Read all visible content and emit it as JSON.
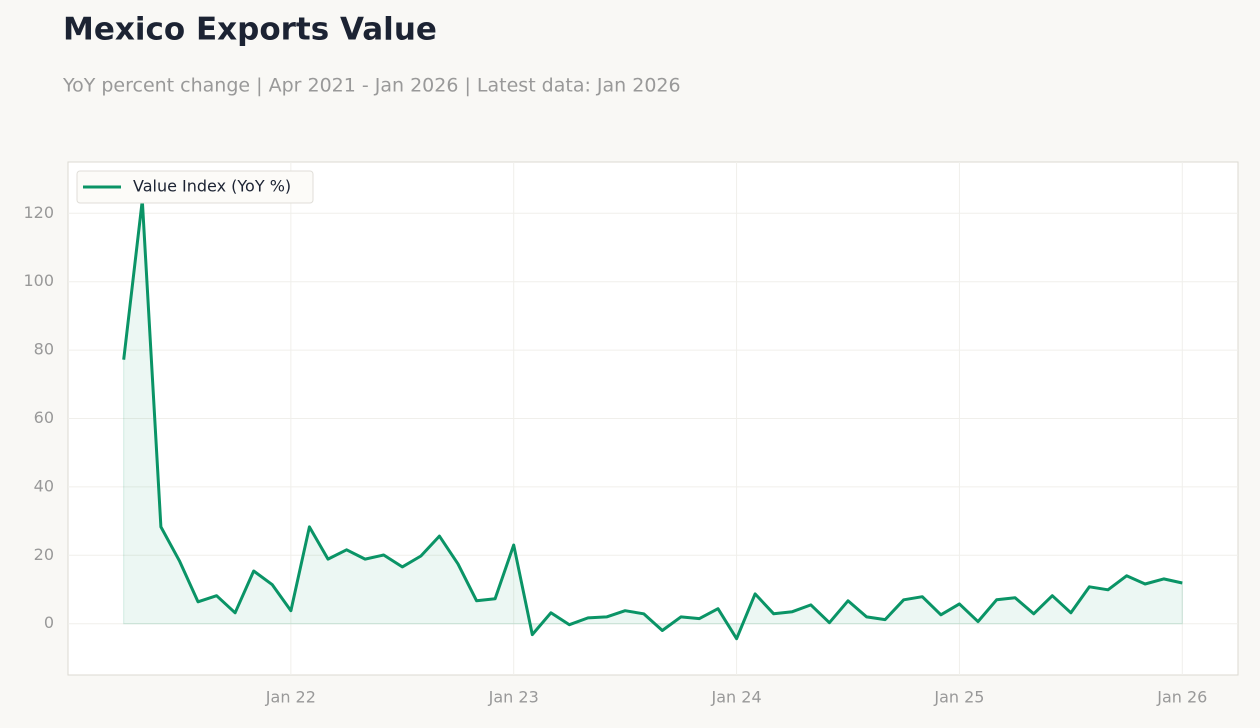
{
  "chart_data": {
    "type": "line",
    "title": "Mexico Exports Value",
    "subtitle": "YoY percent change | Apr 2021 - Jan 2026 | Latest data: Jan 2026",
    "x": [
      "2021-04",
      "2021-05",
      "2021-06",
      "2021-07",
      "2021-08",
      "2021-09",
      "2021-10",
      "2021-11",
      "2021-12",
      "2022-01",
      "2022-02",
      "2022-03",
      "2022-04",
      "2022-05",
      "2022-06",
      "2022-07",
      "2022-08",
      "2022-09",
      "2022-10",
      "2022-11",
      "2022-12",
      "2023-01",
      "2023-02",
      "2023-03",
      "2023-04",
      "2023-05",
      "2023-06",
      "2023-07",
      "2023-08",
      "2023-09",
      "2023-10",
      "2023-11",
      "2023-12",
      "2024-01",
      "2024-02",
      "2024-03",
      "2024-04",
      "2024-05",
      "2024-06",
      "2024-07",
      "2024-08",
      "2024-09",
      "2024-10",
      "2024-11",
      "2024-12",
      "2025-01",
      "2025-02",
      "2025-03",
      "2025-04",
      "2025-05",
      "2025-06",
      "2025-07",
      "2025-08",
      "2025-09",
      "2025-10",
      "2025-11",
      "2025-12",
      "2026-01"
    ],
    "series": [
      {
        "name": "Value Index (YoY %)",
        "color": "#0a9466",
        "values": [
          77.2,
          123.8,
          28.3,
          18.4,
          6.4,
          8.2,
          3.2,
          15.4,
          11.4,
          3.8,
          28.3,
          18.9,
          21.6,
          18.9,
          20.1,
          16.6,
          19.8,
          25.6,
          17.5,
          6.7,
          7.3,
          23.0,
          -3.2,
          3.2,
          -0.3,
          1.7,
          2.0,
          3.8,
          2.9,
          -2.0,
          2.0,
          1.5,
          4.4,
          -4.4,
          8.7,
          2.9,
          3.5,
          5.5,
          0.3,
          6.7,
          2.0,
          1.2,
          7.0,
          7.9,
          2.6,
          5.8,
          0.6,
          7.0,
          7.6,
          2.9,
          8.2,
          3.2,
          10.8,
          9.9,
          14.0,
          11.6,
          13.1,
          11.9
        ]
      }
    ],
    "xlim": [
      "2021-01",
      "2026-04"
    ],
    "xticks": [
      {
        "value": "2022-01",
        "label": "Jan 22"
      },
      {
        "value": "2023-01",
        "label": "Jan 23"
      },
      {
        "value": "2024-01",
        "label": "Jan 24"
      },
      {
        "value": "2025-01",
        "label": "Jan 25"
      },
      {
        "value": "2026-01",
        "label": "Jan 26"
      }
    ],
    "ylim": [
      -15,
      135
    ],
    "yticks": [
      0,
      20,
      40,
      60,
      80,
      100,
      120
    ],
    "grid": true,
    "legend": "upper left",
    "fill_area": true
  }
}
